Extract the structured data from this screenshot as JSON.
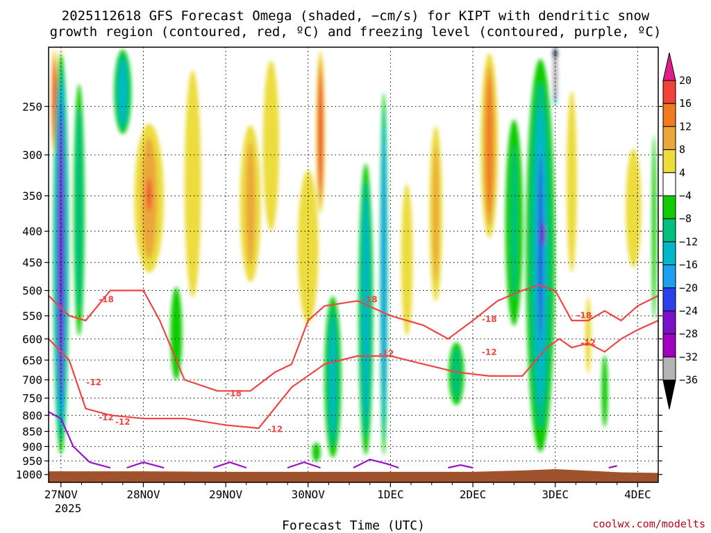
{
  "chart_data": {
    "type": "heatmap",
    "title": "2025112618 GFS Forecast Omega (shaded, −cm/s) for KIPT with dendritic snow",
    "subtitle": "growth region (contoured, red, ºC) and freezing level (contoured, purple, ºC)",
    "xlabel": "Forecast Time (UTC)",
    "ylabel": "",
    "credit": "coolwx.com/modelts",
    "x_ticks": [
      "27NOV",
      "28NOV",
      "29NOV",
      "30NOV",
      "1DEC",
      "2DEC",
      "3DEC",
      "4DEC"
    ],
    "x_year": "2025",
    "x_range_days": [
      -0.15,
      7.25
    ],
    "y_ticks": [
      250,
      300,
      350,
      400,
      450,
      500,
      550,
      600,
      650,
      700,
      750,
      800,
      850,
      900,
      950,
      1000
    ],
    "y_range_hpa": [
      200,
      1030
    ],
    "grid": "dotted",
    "colorbar": {
      "labels": [
        "20",
        "16",
        "12",
        "8",
        "4",
        "−4",
        "−8",
        "−12",
        "−16",
        "−20",
        "−24",
        "−28",
        "−32",
        "−36"
      ],
      "bins": [
        {
          "range": ">20",
          "color": "#e0208a"
        },
        {
          "range": "16 to 20",
          "color": "#f0443a"
        },
        {
          "range": "12 to 16",
          "color": "#f07a20"
        },
        {
          "range": "8 to 12",
          "color": "#eba73a"
        },
        {
          "range": "4 to 8",
          "color": "#ecdc3c"
        },
        {
          "range": "-4 to 4",
          "color": "#ffffff"
        },
        {
          "range": "-8 to -4",
          "color": "#11cc00"
        },
        {
          "range": "-12 to -8",
          "color": "#00c080"
        },
        {
          "range": "-16 to -12",
          "color": "#00b8c8"
        },
        {
          "range": "-20 to -16",
          "color": "#1ea0f0"
        },
        {
          "range": "-24 to -20",
          "color": "#2a40e8"
        },
        {
          "range": "-28 to -24",
          "color": "#7a10c8"
        },
        {
          "range": "-32 to -28",
          "color": "#a000c0"
        },
        {
          "range": "-36 to -32",
          "color": "#b4b4b4"
        },
        {
          "range": "<-36",
          "color": "#000000"
        }
      ]
    },
    "colors": {
      "terrain": "#a0522d",
      "dgz_contour": "#ee4444",
      "freezing_contour": "#9910cc"
    },
    "omega_features": [
      {
        "day": 0.0,
        "p_top": 200,
        "p_bot": 950,
        "half_width": 0.1,
        "value": -24
      },
      {
        "day": -0.08,
        "p_top": 200,
        "p_bot": 300,
        "half_width": 0.04,
        "value": 18
      },
      {
        "day": 0.0,
        "p_top": 200,
        "p_bot": 320,
        "half_width": 0.03,
        "value": 22
      },
      {
        "day": 0.22,
        "p_top": 220,
        "p_bot": 620,
        "half_width": 0.08,
        "value": -10
      },
      {
        "day": 0.75,
        "p_top": 200,
        "p_bot": 280,
        "half_width": 0.12,
        "value": -14
      },
      {
        "day": 1.07,
        "p_top": 260,
        "p_bot": 480,
        "half_width": 0.22,
        "value": 10
      },
      {
        "day": 1.07,
        "p_top": 320,
        "p_bot": 380,
        "half_width": 0.06,
        "value": 17
      },
      {
        "day": 1.6,
        "p_top": 200,
        "p_bot": 560,
        "half_width": 0.16,
        "value": 6
      },
      {
        "day": 1.4,
        "p_top": 480,
        "p_bot": 720,
        "half_width": 0.1,
        "value": -7
      },
      {
        "day": 2.3,
        "p_top": 260,
        "p_bot": 500,
        "half_width": 0.16,
        "value": 9
      },
      {
        "day": 2.55,
        "p_top": 200,
        "p_bot": 420,
        "half_width": 0.14,
        "value": 7
      },
      {
        "day": 3.0,
        "p_top": 300,
        "p_bot": 600,
        "half_width": 0.2,
        "value": 6
      },
      {
        "day": 3.15,
        "p_top": 200,
        "p_bot": 380,
        "half_width": 0.06,
        "value": 16
      },
      {
        "day": 3.3,
        "p_top": 500,
        "p_bot": 960,
        "half_width": 0.12,
        "value": -12
      },
      {
        "day": 3.1,
        "p_top": 880,
        "p_bot": 960,
        "half_width": 0.08,
        "value": -6
      },
      {
        "day": 3.7,
        "p_top": 300,
        "p_bot": 960,
        "half_width": 0.1,
        "value": -14
      },
      {
        "day": 3.92,
        "p_top": 230,
        "p_bot": 960,
        "half_width": 0.05,
        "value": -18
      },
      {
        "day": 4.2,
        "p_top": 320,
        "p_bot": 620,
        "half_width": 0.1,
        "value": 7
      },
      {
        "day": 4.55,
        "p_top": 260,
        "p_bot": 540,
        "half_width": 0.1,
        "value": 9
      },
      {
        "day": 4.8,
        "p_top": 600,
        "p_bot": 780,
        "half_width": 0.12,
        "value": -9
      },
      {
        "day": 5.2,
        "p_top": 200,
        "p_bot": 420,
        "half_width": 0.12,
        "value": 13
      },
      {
        "day": 5.5,
        "p_top": 250,
        "p_bot": 600,
        "half_width": 0.14,
        "value": -8
      },
      {
        "day": 5.82,
        "p_top": 200,
        "p_bot": 960,
        "half_width": 0.2,
        "value": -14
      },
      {
        "day": 5.82,
        "p_top": 250,
        "p_bot": 720,
        "half_width": 0.07,
        "value": -20
      },
      {
        "day": 5.85,
        "p_top": 380,
        "p_bot": 430,
        "half_width": 0.04,
        "value": -25
      },
      {
        "day": 6.0,
        "p_top": 200,
        "p_bot": 250,
        "half_width": 0.03,
        "value": -32
      },
      {
        "day": 6.0,
        "p_top": 200,
        "p_bot": 210,
        "half_width": 0.02,
        "value": -36
      },
      {
        "day": 6.2,
        "p_top": 220,
        "p_bot": 500,
        "half_width": 0.1,
        "value": 6
      },
      {
        "day": 6.4,
        "p_top": 500,
        "p_bot": 700,
        "half_width": 0.05,
        "value": 7
      },
      {
        "day": 6.6,
        "p_top": 620,
        "p_bot": 860,
        "half_width": 0.06,
        "value": -6
      },
      {
        "day": 6.95,
        "p_top": 280,
        "p_bot": 480,
        "half_width": 0.15,
        "value": 6
      },
      {
        "day": 7.2,
        "p_top": 260,
        "p_bot": 600,
        "half_width": 0.04,
        "value": -6
      }
    ],
    "dgz_minus12_hpa": {
      "x": [
        -0.15,
        0.1,
        0.3,
        0.6,
        1.0,
        1.5,
        2.0,
        2.4,
        2.8,
        3.2,
        3.6,
        4.0,
        4.4,
        4.8,
        5.2,
        5.6,
        5.9,
        6.05,
        6.2,
        6.4,
        6.6,
        6.8,
        7.0,
        7.25
      ],
      "y": [
        600,
        650,
        780,
        800,
        810,
        810,
        830,
        840,
        720,
        660,
        640,
        640,
        660,
        680,
        690,
        690,
        620,
        600,
        620,
        610,
        630,
        600,
        580,
        560
      ]
    },
    "dgz_minus18_hpa": {
      "x": [
        -0.15,
        0.1,
        0.3,
        0.6,
        1.0,
        1.2,
        1.5,
        1.9,
        2.3,
        2.6,
        2.8,
        3.0,
        3.2,
        3.6,
        4.0,
        4.4,
        4.7,
        5.0,
        5.3,
        5.6,
        5.8,
        6.0,
        6.2,
        6.4,
        6.6,
        6.8,
        7.0,
        7.25
      ],
      "y": [
        510,
        550,
        560,
        500,
        500,
        560,
        700,
        730,
        730,
        680,
        660,
        560,
        530,
        520,
        550,
        570,
        600,
        560,
        520,
        500,
        490,
        500,
        560,
        560,
        540,
        560,
        530,
        510
      ]
    },
    "freezing_level_hpa": [
      {
        "x": [
          -0.15,
          0.0,
          0.15,
          0.35,
          0.6
        ],
        "y": [
          790,
          810,
          900,
          955,
          975
        ]
      },
      {
        "x": [
          0.8,
          1.0,
          1.25
        ],
        "y": [
          975,
          955,
          975
        ]
      },
      {
        "x": [
          1.85,
          2.05,
          2.25
        ],
        "y": [
          975,
          955,
          975
        ]
      },
      {
        "x": [
          2.75,
          2.95,
          3.15
        ],
        "y": [
          975,
          955,
          975
        ]
      },
      {
        "x": [
          3.55,
          3.75,
          3.95,
          4.1
        ],
        "y": [
          975,
          945,
          960,
          975
        ]
      },
      {
        "x": [
          4.7,
          4.85,
          5.0
        ],
        "y": [
          975,
          965,
          975
        ]
      },
      {
        "x": [
          6.65,
          6.75
        ],
        "y": [
          975,
          968
        ]
      }
    ],
    "terrain_top_hpa": {
      "x": [
        -0.15,
        1.0,
        2.0,
        3.0,
        4.0,
        5.0,
        5.6,
        6.0,
        6.4,
        6.8,
        7.25
      ],
      "y": [
        988,
        988,
        990,
        990,
        990,
        990,
        985,
        980,
        986,
        992,
        994
      ]
    },
    "contour_labels": [
      {
        "text": "-18",
        "day": 0.55,
        "p": 518
      },
      {
        "text": "-12",
        "day": 0.4,
        "p": 708
      },
      {
        "text": "-12",
        "day": 0.55,
        "p": 808
      },
      {
        "text": "-12",
        "day": 0.75,
        "p": 822
      },
      {
        "text": "-18",
        "day": 2.1,
        "p": 738
      },
      {
        "text": "-12",
        "day": 2.6,
        "p": 844
      },
      {
        "text": "-18",
        "day": 3.75,
        "p": 518
      },
      {
        "text": "-12",
        "day": 3.95,
        "p": 635
      },
      {
        "text": "-18",
        "day": 5.2,
        "p": 558
      },
      {
        "text": "-12",
        "day": 5.2,
        "p": 632
      },
      {
        "text": "-18",
        "day": 6.35,
        "p": 550
      },
      {
        "text": "-12",
        "day": 6.4,
        "p": 610
      }
    ]
  }
}
